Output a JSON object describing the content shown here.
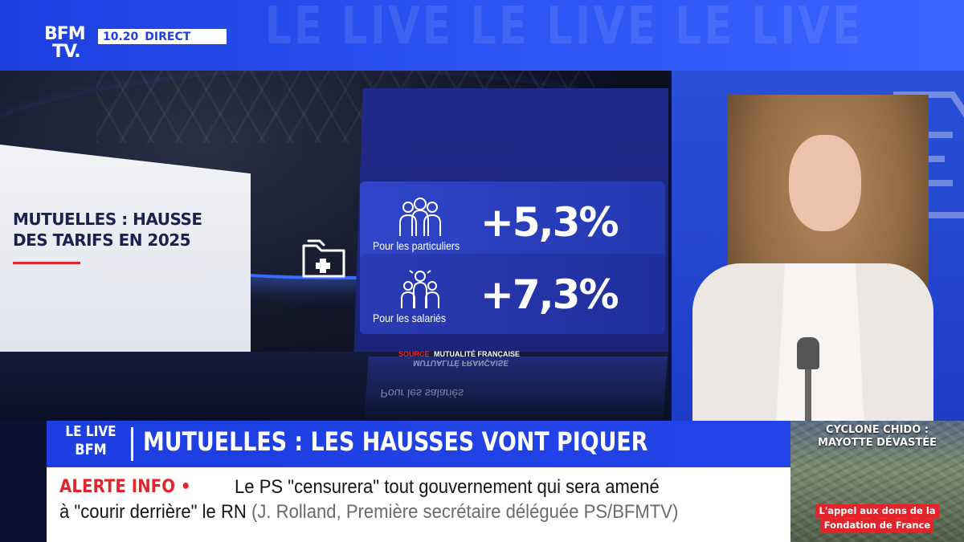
{
  "channel": {
    "logo_line1": "BFM",
    "logo_line2": "TV.",
    "time": "10.20",
    "live_label": "DIRECT",
    "watermark": "LE LIVE LE LIVE LE LIVE"
  },
  "graphic": {
    "title": "MUTUELLES : HAUSSE DES TARIFS EN 2025",
    "cards": [
      {
        "label": "Pour les particuliers",
        "value": "+5,3%"
      },
      {
        "label": "Pour les salariés",
        "value": "+7,3%"
      }
    ],
    "source_key": "SOURCE",
    "source_name": "MUTUALITÉ FRANÇAISE",
    "reflection_text": "Pour les salariés"
  },
  "lower_third": {
    "logo_line1": "LE LIVE",
    "logo_line2": "BFM",
    "headline": "MUTUELLES : LES HAUSSES VONT PIQUER"
  },
  "alert": {
    "label": "ALERTE INFO •",
    "line1": "Le PS \"censurera\" tout gouvernement qui sera amené",
    "line2_main": "à \"courir derrière\" le RN",
    "line2_attribution": "(J. Rolland, Première secrétaire déléguée PS/BFMTV)"
  },
  "side_thumb": {
    "title": "CYCLONE CHIDO : MAYOTTE DÉVASTÉE",
    "caption_line1": "L'appel aux dons de la",
    "caption_line2": "Fondation de France"
  },
  "colors": {
    "brand_blue": "#1d3ee0",
    "alert_red": "#e3242b",
    "card_blue": "#3045c8"
  }
}
